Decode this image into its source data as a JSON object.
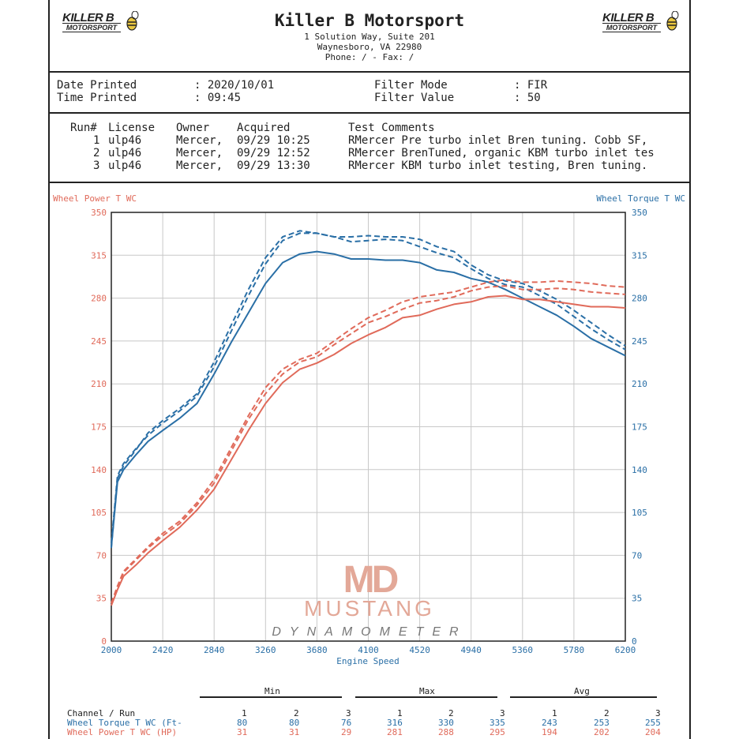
{
  "header": {
    "company": "Killer B Motorsport",
    "address1": "1 Solution Way, Suite 201",
    "address2": "Waynesboro, VA  22980",
    "phone": "Phone: /  - Fax: /",
    "logo_top": "KILLER B",
    "logo_bottom": "MOTORSPORT"
  },
  "info": {
    "date_label": "Date Printed",
    "date_value": ": 2020/10/01",
    "time_label": "Time Printed",
    "time_value": ": 09:45",
    "filter_mode_label": "Filter Mode",
    "filter_mode_value": ": FIR",
    "filter_value_label": "Filter Value",
    "filter_value_value": ": 50"
  },
  "runs": {
    "headers": [
      "Run#",
      "License",
      "Owner",
      "Acquired",
      "Test Comments"
    ],
    "rows": [
      {
        "run": "1",
        "license": "ulp46",
        "owner": "Mercer,",
        "acquired": "09/29 10:25",
        "comment": "RMercer Pre turbo inlet Bren tuning. Cobb SF,"
      },
      {
        "run": "2",
        "license": "ulp46",
        "owner": "Mercer,",
        "acquired": "09/29 12:52",
        "comment": "RMercer BrenTuned, organic KBM turbo inlet tes"
      },
      {
        "run": "3",
        "license": "ulp46",
        "owner": "Mercer,",
        "acquired": "09/29 13:30",
        "comment": "RMercer KBM turbo inlet testing, Bren tuning."
      }
    ]
  },
  "watermark": {
    "mark": "MD",
    "line1": "MUSTANG",
    "line2": "DYNAMOMETER"
  },
  "colors": {
    "power": "#e06a5a",
    "torque": "#2a6fa6",
    "grid": "#c8c8c8",
    "frame": "#222222"
  },
  "chart_data": {
    "type": "line",
    "xlabel": "Engine Speed",
    "ylabel_left": "Wheel Power T WC",
    "ylabel_right": "Wheel Torque T WC",
    "xlim": [
      2000,
      6200
    ],
    "ylim": [
      0,
      350
    ],
    "x_ticks": [
      2000,
      2420,
      2840,
      3260,
      3680,
      4100,
      4520,
      4940,
      5360,
      5780,
      6200
    ],
    "y_ticks": [
      0,
      35,
      70,
      105,
      140,
      175,
      210,
      245,
      280,
      315,
      350
    ],
    "x": [
      2000,
      2050,
      2100,
      2200,
      2300,
      2420,
      2560,
      2700,
      2840,
      2980,
      3120,
      3260,
      3400,
      3540,
      3680,
      3820,
      3960,
      4100,
      4240,
      4380,
      4520,
      4660,
      4800,
      4940,
      5080,
      5220,
      5360,
      5500,
      5640,
      5780,
      5920,
      6060,
      6200
    ],
    "series": [
      {
        "quantity": "torque",
        "run": "1",
        "style": "solid",
        "values": [
          77,
          130,
          140,
          152,
          163,
          172,
          182,
          194,
          218,
          244,
          268,
          292,
          309,
          316,
          318,
          316,
          312,
          312,
          311,
          311,
          309,
          303,
          301,
          296,
          293,
          287,
          280,
          273,
          266,
          257,
          247,
          240,
          233
        ]
      },
      {
        "quantity": "torque",
        "run": "2",
        "style": "dashed",
        "values": [
          80,
          135,
          145,
          157,
          168,
          178,
          188,
          200,
          224,
          253,
          282,
          308,
          327,
          333,
          333,
          330,
          326,
          327,
          328,
          327,
          322,
          317,
          313,
          304,
          296,
          291,
          289,
          282,
          275,
          265,
          255,
          246,
          238
        ]
      },
      {
        "quantity": "torque",
        "run": "3",
        "style": "dashed",
        "values": [
          76,
          133,
          143,
          156,
          170,
          180,
          190,
          202,
          228,
          258,
          287,
          313,
          330,
          335,
          333,
          330,
          330,
          331,
          330,
          330,
          328,
          322,
          318,
          307,
          299,
          294,
          292,
          286,
          279,
          270,
          260,
          250,
          241
        ]
      },
      {
        "quantity": "power",
        "run": "1",
        "style": "solid",
        "values": [
          29,
          42,
          53,
          62,
          72,
          82,
          93,
          107,
          124,
          148,
          172,
          194,
          211,
          222,
          227,
          234,
          243,
          250,
          256,
          264,
          266,
          271,
          275,
          277,
          281,
          282,
          279,
          279,
          277,
          275,
          273,
          273,
          272
        ]
      },
      {
        "quantity": "power",
        "run": "2",
        "style": "dashed",
        "values": [
          31,
          44,
          56,
          66,
          76,
          86,
          96,
          111,
          129,
          155,
          181,
          202,
          218,
          228,
          232,
          242,
          251,
          260,
          265,
          271,
          276,
          278,
          281,
          286,
          289,
          290,
          287,
          287,
          288,
          287,
          285,
          284,
          283
        ]
      },
      {
        "quantity": "power",
        "run": "3",
        "style": "dashed",
        "values": [
          31,
          45,
          57,
          67,
          77,
          88,
          98,
          113,
          132,
          158,
          184,
          207,
          222,
          230,
          235,
          245,
          255,
          264,
          270,
          277,
          281,
          283,
          285,
          289,
          293,
          295,
          293,
          293,
          294,
          293,
          292,
          290,
          289
        ]
      }
    ]
  },
  "stats": {
    "groups": [
      "Min",
      "Max",
      "Avg"
    ],
    "header_label": "Channel / Run",
    "runs": [
      "1",
      "2",
      "3"
    ],
    "rows": [
      {
        "label": "Wheel Torque T WC (Ft-",
        "values": [
          "80",
          "80",
          "76",
          "316",
          "330",
          "335",
          "243",
          "253",
          "255"
        ]
      },
      {
        "label": "Wheel Power T WC (HP)",
        "values": [
          "31",
          "31",
          "29",
          "281",
          "288",
          "295",
          "194",
          "202",
          "204"
        ]
      }
    ]
  }
}
